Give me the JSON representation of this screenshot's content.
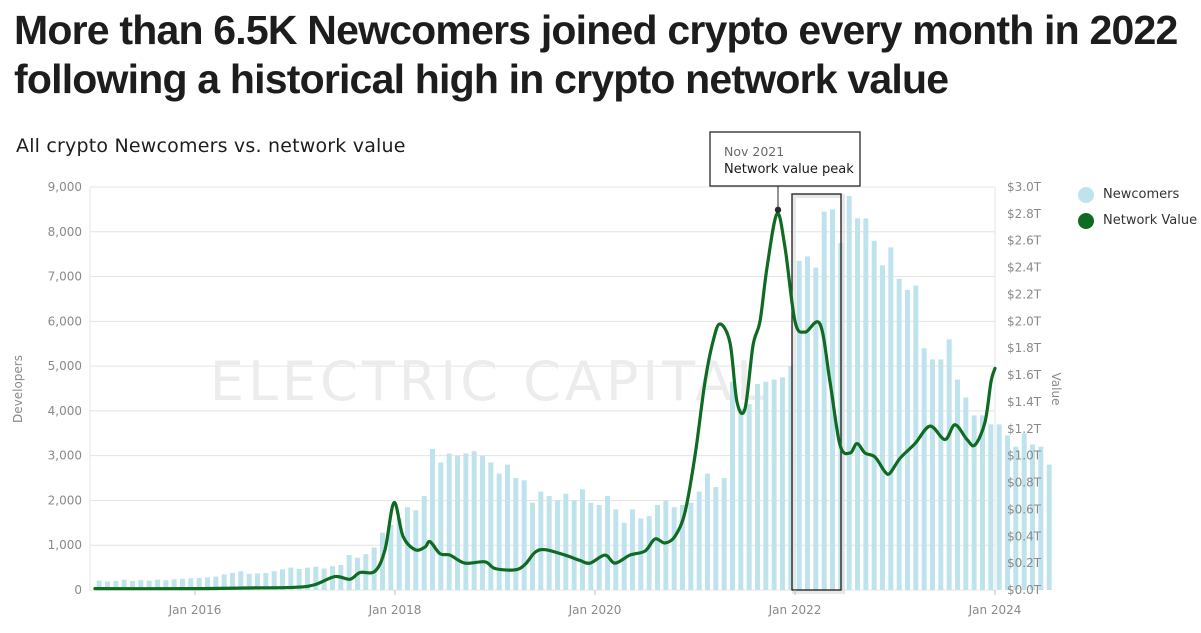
{
  "title": "More than 6.5K Newcomers joined crypto every month in 2022 following a historical high in crypto network value",
  "subtitle": "All crypto Newcomers vs. network value",
  "colors": {
    "newcomers": "#bfe3ec",
    "network_value": "#0f6b22",
    "grid": "#e4e4e4"
  },
  "legend": [
    {
      "label": "Newcomers",
      "color": "#bfe3ec"
    },
    {
      "label": "Network Value",
      "color": "#0f6b22"
    }
  ],
  "watermark": "ELECTRIC CAPITAL",
  "chart_data": {
    "type": "bar+line",
    "ylabel": "Developers",
    "y2label": "Value",
    "ylim": [
      0,
      9000
    ],
    "y2lim": [
      0,
      3.0
    ],
    "xlim": [
      2015.0,
      2024.0
    ],
    "yticks": [
      "0",
      "1,000",
      "2,000",
      "3,000",
      "4,000",
      "5,000",
      "6,000",
      "7,000",
      "8,000",
      "9,000"
    ],
    "y2ticks": [
      "$0.0T",
      "$0.2T",
      "$0.4T",
      "$0.6T",
      "$0.8T",
      "$1.0T",
      "$1.2T",
      "$1.4T",
      "$1.6T",
      "$1.8T",
      "$2.0T",
      "$2.2T",
      "$2.4T",
      "$2.6T",
      "$2.8T",
      "$3.0T"
    ],
    "xticks": [
      "Jan 2016",
      "Jan 2018",
      "Jan 2020",
      "Jan 2022",
      "Jan 2024"
    ],
    "series": [
      {
        "name": "Newcomers",
        "type": "bar",
        "start": "Jan 2015",
        "values": [
          210,
          190,
          200,
          230,
          200,
          220,
          210,
          230,
          220,
          240,
          250,
          260,
          270,
          280,
          300,
          350,
          380,
          420,
          360,
          370,
          380,
          420,
          460,
          500,
          470,
          500,
          520,
          480,
          530,
          560,
          780,
          720,
          800,
          950,
          1280,
          1450,
          1600,
          1850,
          1780,
          2100,
          3150,
          2850,
          3050,
          3000,
          3050,
          3100,
          3000,
          2850,
          2600,
          2800,
          2500,
          2450,
          1950,
          2200,
          2100,
          2000,
          2150,
          2000,
          2250,
          1950,
          1900,
          2100,
          1800,
          1500,
          1800,
          1600,
          1650,
          1900,
          2000,
          1850,
          1900,
          1950,
          2200,
          2600,
          2300,
          2500,
          4650,
          4050,
          4150,
          4600,
          4650,
          4700,
          4750,
          5000,
          7350,
          7450,
          7200,
          8450,
          8500,
          7750,
          8800,
          8300,
          8300,
          7800,
          7250,
          7650,
          6950,
          6700,
          6800,
          5400,
          5150,
          5150,
          5600,
          4700,
          4300,
          3900,
          3900,
          3700,
          3700,
          3450,
          3200,
          3500,
          3250,
          3200,
          2800
        ]
      },
      {
        "name": "Network Value",
        "type": "line",
        "unit": "$T",
        "points": [
          [
            2015.0,
            0.01
          ],
          [
            2016.0,
            0.01
          ],
          [
            2016.5,
            0.015
          ],
          [
            2017.0,
            0.02
          ],
          [
            2017.2,
            0.04
          ],
          [
            2017.4,
            0.1
          ],
          [
            2017.55,
            0.08
          ],
          [
            2017.65,
            0.13
          ],
          [
            2017.8,
            0.14
          ],
          [
            2017.9,
            0.3
          ],
          [
            2017.99,
            0.65
          ],
          [
            2018.08,
            0.4
          ],
          [
            2018.2,
            0.3
          ],
          [
            2018.3,
            0.32
          ],
          [
            2018.35,
            0.36
          ],
          [
            2018.45,
            0.27
          ],
          [
            2018.55,
            0.26
          ],
          [
            2018.7,
            0.2
          ],
          [
            2018.9,
            0.21
          ],
          [
            2019.0,
            0.16
          ],
          [
            2019.2,
            0.15
          ],
          [
            2019.3,
            0.19
          ],
          [
            2019.4,
            0.28
          ],
          [
            2019.5,
            0.3
          ],
          [
            2019.7,
            0.26
          ],
          [
            2019.85,
            0.22
          ],
          [
            2019.95,
            0.2
          ],
          [
            2020.1,
            0.26
          ],
          [
            2020.2,
            0.2
          ],
          [
            2020.35,
            0.26
          ],
          [
            2020.5,
            0.29
          ],
          [
            2020.6,
            0.38
          ],
          [
            2020.7,
            0.35
          ],
          [
            2020.8,
            0.4
          ],
          [
            2020.9,
            0.58
          ],
          [
            2021.0,
            1.0
          ],
          [
            2021.1,
            1.55
          ],
          [
            2021.18,
            1.85
          ],
          [
            2021.25,
            1.98
          ],
          [
            2021.35,
            1.84
          ],
          [
            2021.42,
            1.4
          ],
          [
            2021.5,
            1.35
          ],
          [
            2021.58,
            1.82
          ],
          [
            2021.65,
            2.0
          ],
          [
            2021.72,
            2.4
          ],
          [
            2021.82,
            2.8
          ],
          [
            2021.9,
            2.55
          ],
          [
            2022.0,
            2.0
          ],
          [
            2022.1,
            1.92
          ],
          [
            2022.25,
            1.98
          ],
          [
            2022.35,
            1.55
          ],
          [
            2022.45,
            1.08
          ],
          [
            2022.55,
            1.02
          ],
          [
            2022.62,
            1.09
          ],
          [
            2022.7,
            1.02
          ],
          [
            2022.8,
            0.99
          ],
          [
            2022.9,
            0.88
          ],
          [
            2022.95,
            0.87
          ],
          [
            2023.05,
            0.98
          ],
          [
            2023.2,
            1.09
          ],
          [
            2023.35,
            1.22
          ],
          [
            2023.5,
            1.12
          ],
          [
            2023.6,
            1.23
          ],
          [
            2023.72,
            1.12
          ],
          [
            2023.8,
            1.08
          ],
          [
            2023.9,
            1.25
          ],
          [
            2023.96,
            1.55
          ],
          [
            2024.0,
            1.65
          ]
        ]
      }
    ],
    "annotation": {
      "date": "Nov 2021",
      "text": "Network value peak",
      "x": 2021.83,
      "value": 2.83
    },
    "highlight": {
      "label": "2022",
      "x_start": 2022.0,
      "x_end": 2022.42
    }
  }
}
